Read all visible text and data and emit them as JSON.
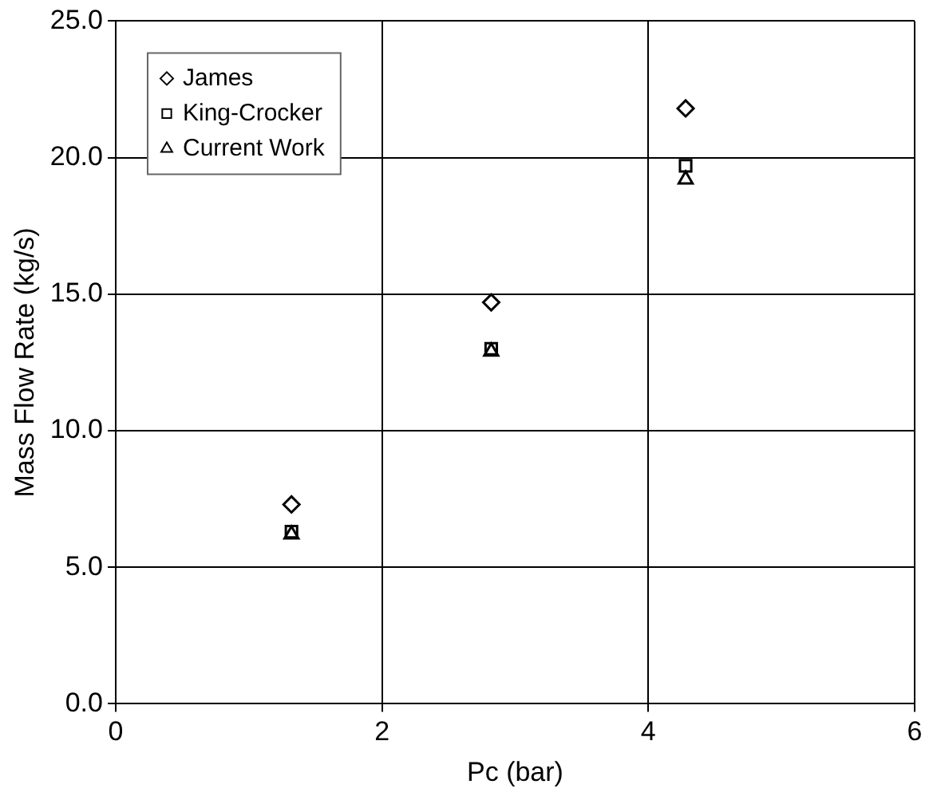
{
  "chart_data": {
    "type": "scatter",
    "xlabel": "Pc (bar)",
    "ylabel": "Mass Flow Rate (kg/s)",
    "xlim": [
      0,
      6
    ],
    "xticks": [
      0,
      2,
      4,
      6
    ],
    "ylim": [
      0,
      25
    ],
    "yticks": [
      {
        "value": 0,
        "label": "0.0"
      },
      {
        "value": 5,
        "label": "5.0"
      },
      {
        "value": 10,
        "label": "10.0"
      },
      {
        "value": 15,
        "label": "15.0"
      },
      {
        "value": 20,
        "label": "20.0"
      },
      {
        "value": 25,
        "label": "25.0"
      }
    ],
    "grid": true,
    "legend": "top left",
    "series": [
      {
        "name": "James",
        "color": "#000000",
        "marker": "diamond",
        "x": [
          1.32,
          2.82,
          4.28
        ],
        "values": [
          7.3,
          14.7,
          21.8
        ]
      },
      {
        "name": "King-Crocker",
        "color": "#000000",
        "marker": "square",
        "x": [
          1.32,
          2.82,
          4.28
        ],
        "values": [
          6.3,
          13.0,
          19.7
        ]
      },
      {
        "name": "Current Work",
        "color": "#000000",
        "marker": "triangle",
        "x": [
          1.32,
          2.82,
          4.28
        ],
        "values": [
          6.2,
          12.9,
          19.2
        ]
      }
    ]
  }
}
